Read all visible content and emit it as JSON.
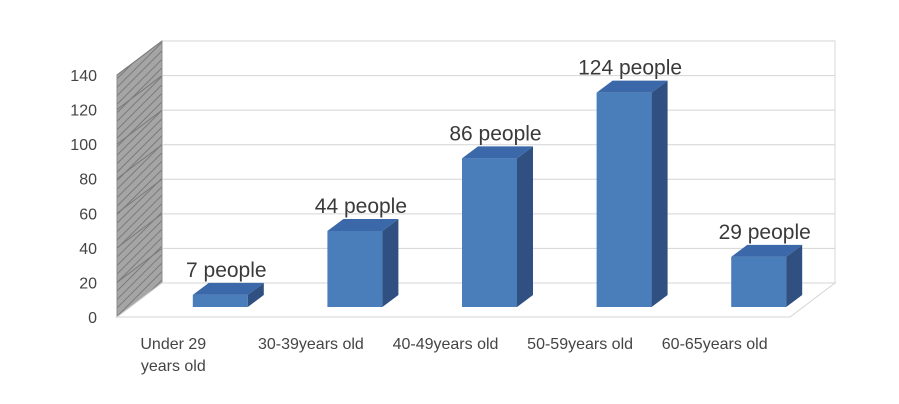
{
  "chart_data": {
    "type": "bar",
    "categories": [
      [
        "Under 29",
        "years old"
      ],
      [
        "30-39years old"
      ],
      [
        "40-49years old"
      ],
      [
        "50-59years old"
      ],
      [
        "60-65years old"
      ]
    ],
    "values": [
      7,
      44,
      86,
      124,
      29
    ],
    "data_labels": [
      "7 people",
      "44 people",
      "86 people",
      "124 people",
      "29 people"
    ],
    "y_ticks": [
      "0",
      "20",
      "40",
      "60",
      "80",
      "100",
      "120",
      "140"
    ],
    "ylim": [
      0,
      140
    ],
    "grid": true,
    "three_d": true,
    "legend": "none",
    "colors": {
      "bar_front": "#4a7ebb",
      "bar_side": "#2f5080",
      "bar_top": "#3a68a8",
      "wall": "#ffffff",
      "side_wall": "#9a9a9a",
      "gridline": "#d4d4d4"
    }
  }
}
